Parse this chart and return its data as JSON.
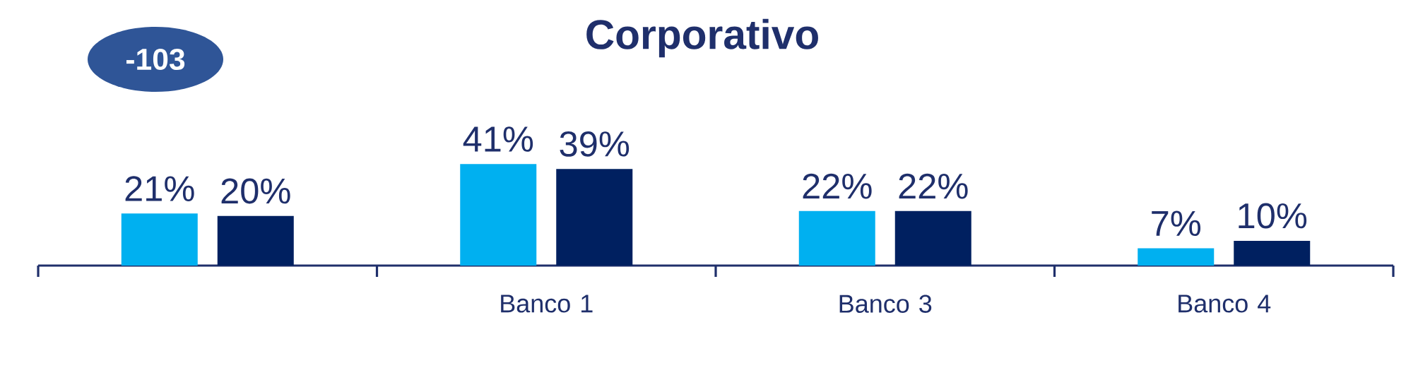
{
  "chart_data": {
    "type": "bar",
    "title": "Corporativo",
    "annotations": [
      "-103"
    ],
    "categories": [
      null,
      "Banco 1",
      "Banco 3",
      "Banco 4"
    ],
    "series": [
      {
        "color": "#00b0f0",
        "values": [
          21,
          41,
          22,
          7
        ],
        "value_labels": [
          "21%",
          "41%",
          "22%",
          "7%"
        ]
      },
      {
        "color": "#002060",
        "values": [
          20,
          39,
          22,
          10
        ],
        "value_labels": [
          "20%",
          "39%",
          "22%",
          "10%"
        ]
      }
    ]
  }
}
